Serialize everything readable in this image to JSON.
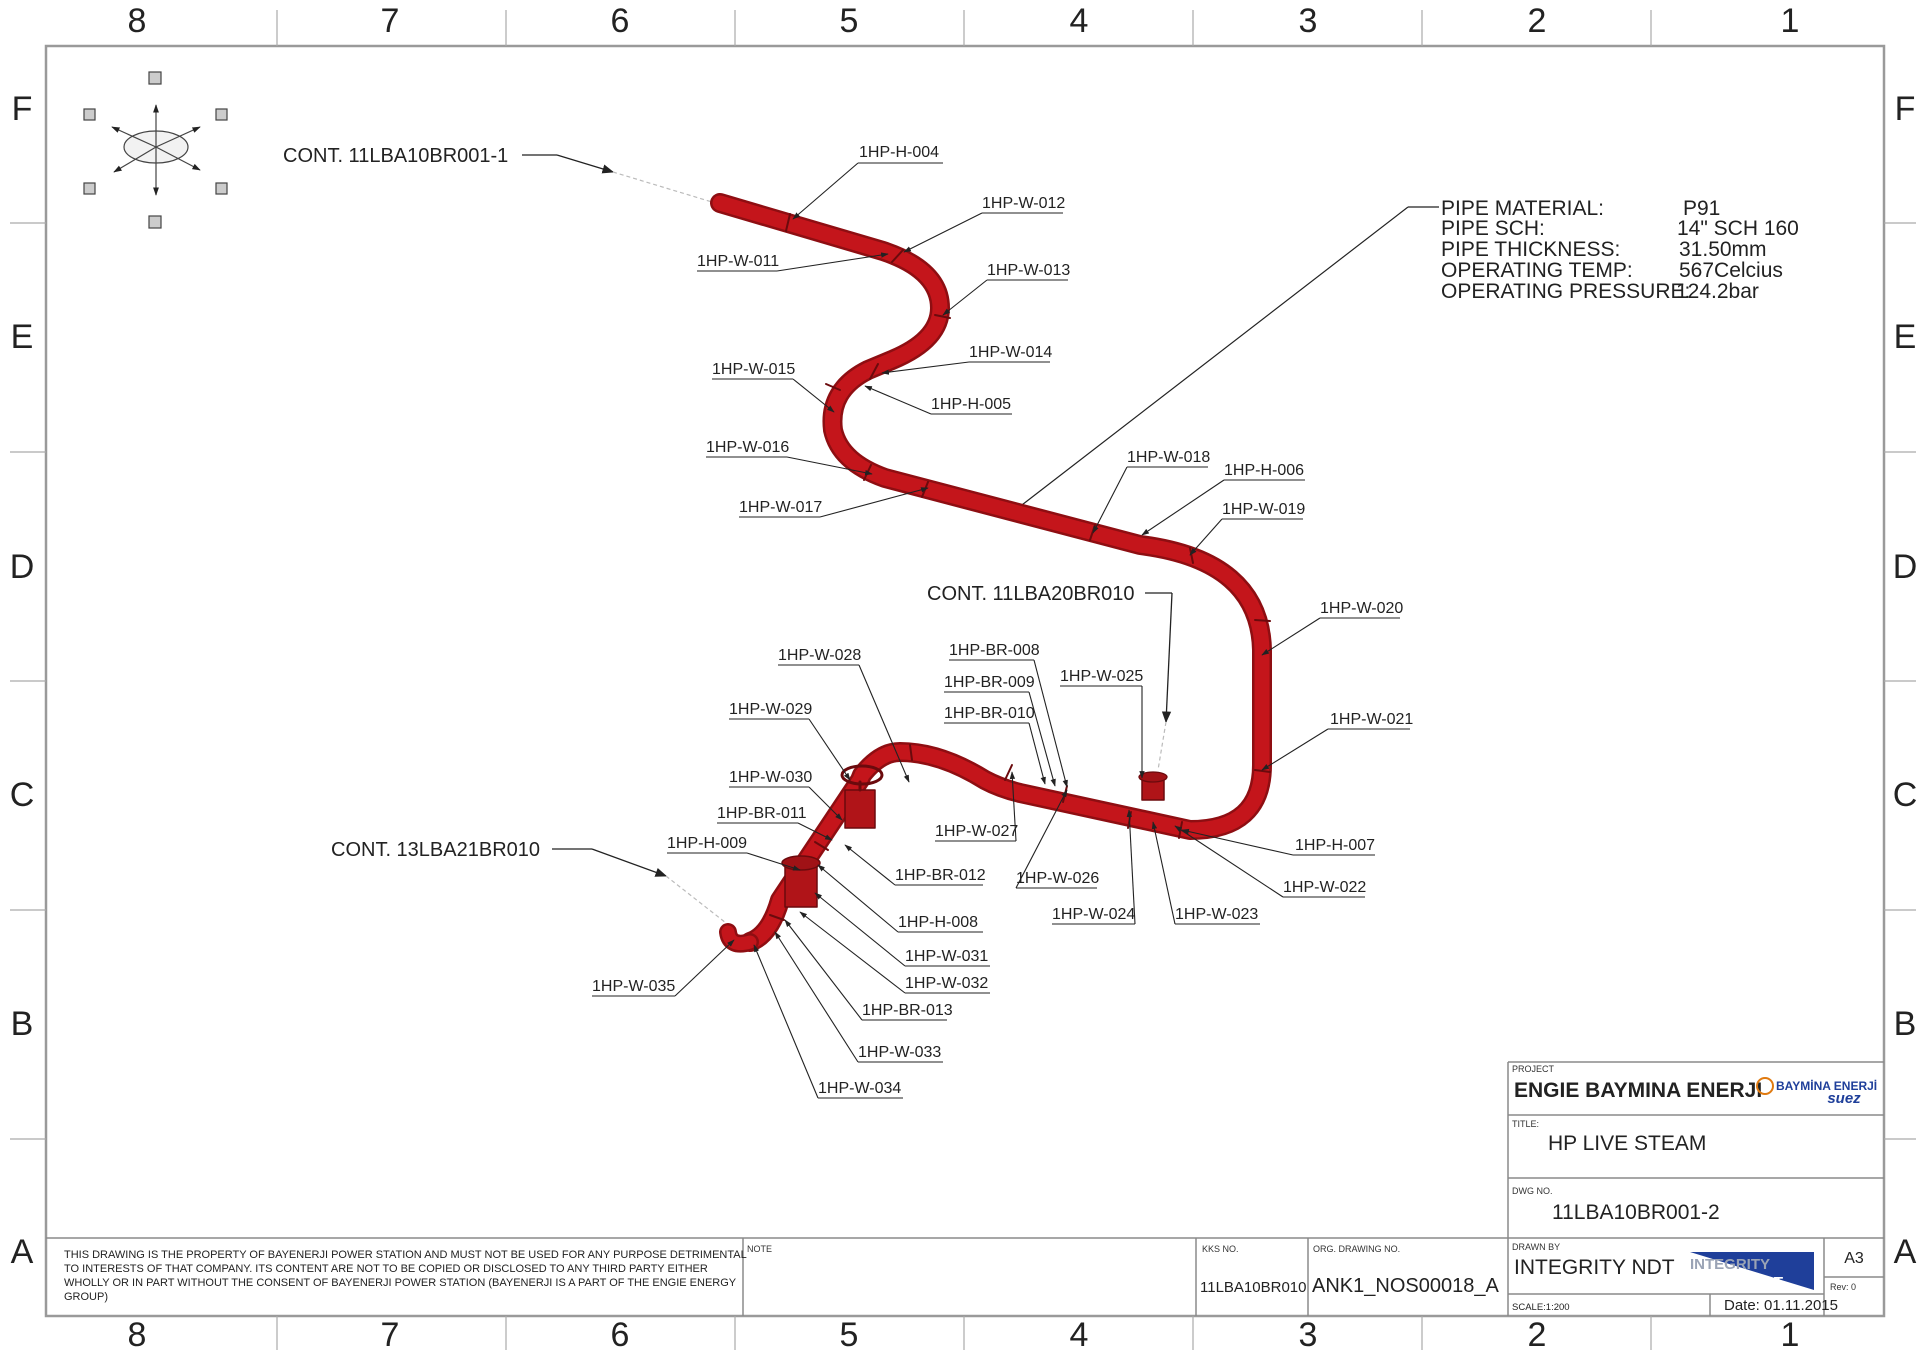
{
  "border": {
    "columns": [
      "8",
      "7",
      "6",
      "5",
      "4",
      "3",
      "2",
      "1"
    ],
    "rows": [
      "F",
      "E",
      "D",
      "C",
      "B",
      "A"
    ]
  },
  "continuations": {
    "top": "CONT. 11LBA10BR001-1",
    "middle": "CONT. 11LBA20BR010",
    "bottom": "CONT. 13LBA21BR010"
  },
  "pipe_specs": [
    {
      "label": "PIPE MATERIAL:",
      "value": "P91"
    },
    {
      "label": "PIPE SCH:",
      "value": "14\" SCH 160"
    },
    {
      "label": "PIPE THICKNESS:",
      "value": "31.50mm"
    },
    {
      "label": "OPERATING TEMP:",
      "value": "567Celcius"
    },
    {
      "label": "OPERATING PRESSURE:",
      "value": "124.2bar"
    }
  ],
  "callouts": {
    "h004": "1HP-H-004",
    "w011": "1HP-W-011",
    "w012": "1HP-W-012",
    "w013": "1HP-W-013",
    "w014": "1HP-W-014",
    "w015": "1HP-W-015",
    "h005": "1HP-H-005",
    "w016": "1HP-W-016",
    "w017": "1HP-W-017",
    "w018": "1HP-W-018",
    "h006": "1HP-H-006",
    "w019": "1HP-W-019",
    "w020": "1HP-W-020",
    "w021": "1HP-W-021",
    "h007": "1HP-H-007",
    "w022": "1HP-W-022",
    "w023": "1HP-W-023",
    "w024": "1HP-W-024",
    "w025": "1HP-W-025",
    "br008": "1HP-BR-008",
    "br009": "1HP-BR-009",
    "br010": "1HP-BR-010",
    "w026": "1HP-W-026",
    "w027": "1HP-W-027",
    "w028": "1HP-W-028",
    "w029": "1HP-W-029",
    "w030": "1HP-W-030",
    "br011": "1HP-BR-011",
    "h009": "1HP-H-009",
    "br012": "1HP-BR-012",
    "h008": "1HP-H-008",
    "w031": "1HP-W-031",
    "w032": "1HP-W-032",
    "br013": "1HP-BR-013",
    "w033": "1HP-W-033",
    "w034": "1HP-W-034",
    "w035": "1HP-W-035"
  },
  "title_block": {
    "project_caption": "PROJECT",
    "project": "ENGIE BAYMINA ENERJI",
    "logo_line1": "BAYMİNA ENERJİ",
    "logo_line2": "suez",
    "title_caption": "TITLE:",
    "title": "HP LIVE STEAM",
    "dwg_caption": "DWG NO.",
    "dwg_no": "11LBA10BR001-2",
    "drawn_caption": "DRAWN BY",
    "drawn_by": "INTEGRITY NDT",
    "logo_integrity": "INTEGRITY",
    "logo_ndt": "NDT",
    "size": "A3",
    "rev": "Rev: 0",
    "scale": "SCALE:1:200",
    "date": "Date: 01.11.2015",
    "kks_caption": "KKS NO.",
    "kks_no": "11LBA10BR010",
    "org_caption": "ORG. DRAWING NO.",
    "org_no": "ANK1_NOS00018_A",
    "note_caption": "NOTE",
    "disclaimer": [
      "THIS DRAWING IS THE PROPERTY OF BAYENERJI POWER STATION AND MUST NOT BE USED FOR ANY PURPOSE DETRIMENTAL",
      "TO INTERESTS OF THAT COMPANY. ITS CONTENT ARE NOT TO BE COPIED OR DISCLOSED TO ANY THIRD PARTY EITHER",
      "WHOLLY OR IN PART WITHOUT THE CONSENT OF BAYENERJI POWER STATION (BAYENERJI IS A PART OF THE ENGIE ENERGY",
      "GROUP)"
    ]
  },
  "colors": {
    "pipe": "#c4151b",
    "pipe_dark": "#8e0e12",
    "frame": "#9a9a9a",
    "leader": "#222222",
    "logo_blue": "#1f3f9a"
  }
}
